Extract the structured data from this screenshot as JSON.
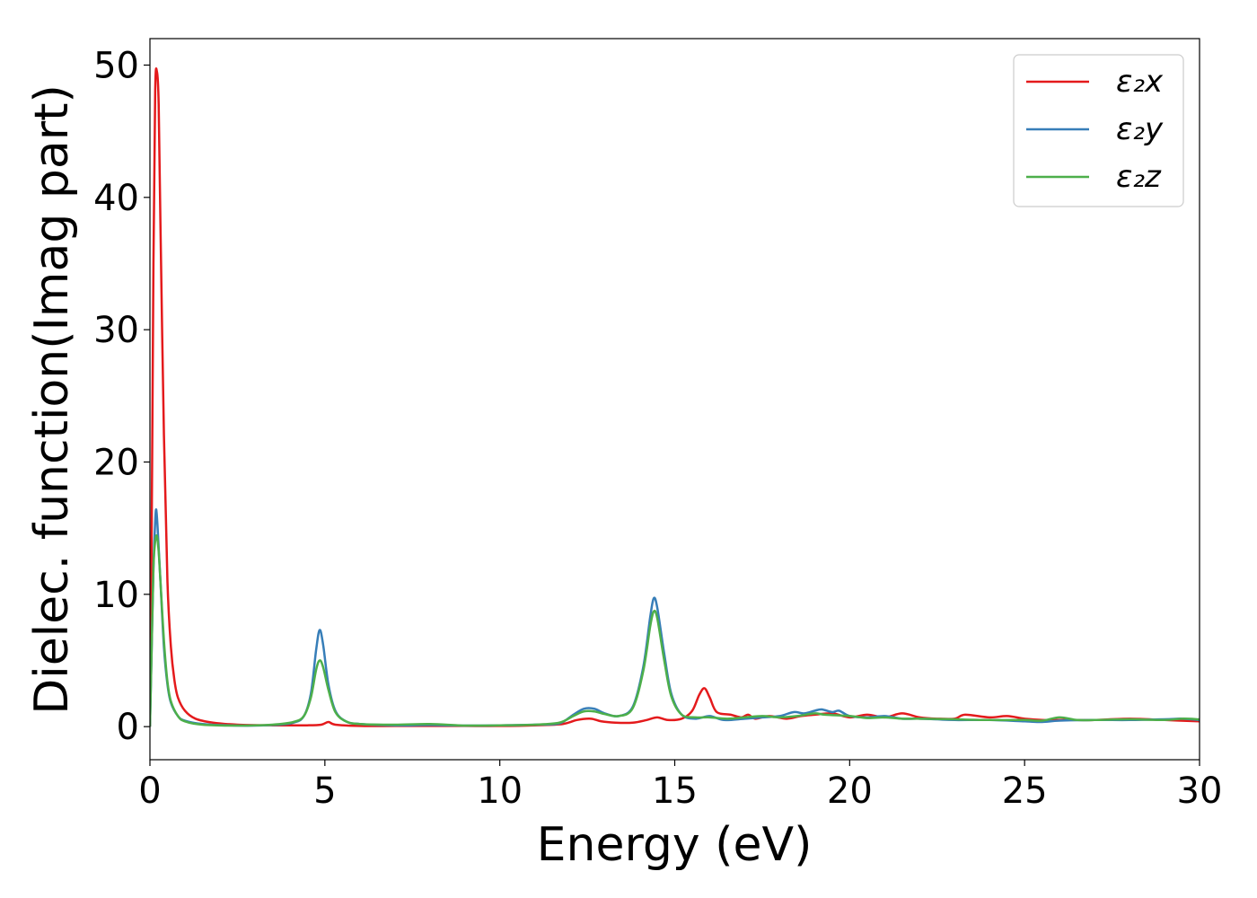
{
  "chart_data": {
    "type": "line",
    "title": "",
    "xlabel": "Energy (eV)",
    "ylabel": "Dielec. function(Imag part)",
    "xlim": [
      0,
      30
    ],
    "ylim": [
      -2.5,
      52
    ],
    "xticks": [
      0,
      5,
      10,
      15,
      20,
      25,
      30
    ],
    "yticks": [
      0,
      10,
      20,
      30,
      40,
      50
    ],
    "grid": false,
    "legend_position": "top-right",
    "series": [
      {
        "name": "ε₂x",
        "color": "#e41a1c",
        "points": [
          [
            0,
            0
          ],
          [
            0.05,
            15
          ],
          [
            0.1,
            35
          ],
          [
            0.15,
            48
          ],
          [
            0.2,
            49.5
          ],
          [
            0.25,
            47
          ],
          [
            0.3,
            38
          ],
          [
            0.4,
            22
          ],
          [
            0.5,
            11
          ],
          [
            0.6,
            6
          ],
          [
            0.7,
            3.5
          ],
          [
            0.8,
            2.2
          ],
          [
            1.0,
            1.2
          ],
          [
            1.3,
            0.6
          ],
          [
            1.8,
            0.3
          ],
          [
            2.5,
            0.15
          ],
          [
            3.5,
            0.1
          ],
          [
            4.5,
            0.1
          ],
          [
            4.9,
            0.15
          ],
          [
            5.1,
            0.35
          ],
          [
            5.3,
            0.15
          ],
          [
            6,
            0.05
          ],
          [
            7,
            0.05
          ],
          [
            8,
            0.05
          ],
          [
            9,
            0.05
          ],
          [
            10,
            0.05
          ],
          [
            11,
            0.1
          ],
          [
            11.8,
            0.2
          ],
          [
            12.2,
            0.5
          ],
          [
            12.6,
            0.6
          ],
          [
            12.9,
            0.4
          ],
          [
            13.3,
            0.3
          ],
          [
            13.8,
            0.3
          ],
          [
            14.2,
            0.5
          ],
          [
            14.5,
            0.7
          ],
          [
            14.8,
            0.5
          ],
          [
            15.2,
            0.6
          ],
          [
            15.5,
            1.2
          ],
          [
            15.7,
            2.4
          ],
          [
            15.85,
            2.9
          ],
          [
            16,
            2.2
          ],
          [
            16.2,
            1.1
          ],
          [
            16.6,
            0.9
          ],
          [
            16.9,
            0.7
          ],
          [
            17.1,
            0.9
          ],
          [
            17.3,
            0.6
          ],
          [
            17.7,
            0.8
          ],
          [
            18.2,
            0.6
          ],
          [
            18.6,
            0.8
          ],
          [
            19,
            0.9
          ],
          [
            19.5,
            1.0
          ],
          [
            20,
            0.7
          ],
          [
            20.5,
            0.9
          ],
          [
            21,
            0.7
          ],
          [
            21.5,
            1.0
          ],
          [
            22,
            0.7
          ],
          [
            22.5,
            0.6
          ],
          [
            23,
            0.6
          ],
          [
            23.3,
            0.9
          ],
          [
            24,
            0.7
          ],
          [
            24.5,
            0.8
          ],
          [
            25,
            0.6
          ],
          [
            25.5,
            0.5
          ],
          [
            26,
            0.5
          ],
          [
            26.5,
            0.5
          ],
          [
            27,
            0.5
          ],
          [
            28,
            0.6
          ],
          [
            29,
            0.5
          ],
          [
            30,
            0.4
          ]
        ]
      },
      {
        "name": "ε₂y",
        "color": "#377eb8",
        "points": [
          [
            0,
            0
          ],
          [
            0.05,
            6
          ],
          [
            0.1,
            12
          ],
          [
            0.15,
            15.5
          ],
          [
            0.18,
            16.4
          ],
          [
            0.22,
            15
          ],
          [
            0.3,
            11
          ],
          [
            0.4,
            6
          ],
          [
            0.5,
            3.2
          ],
          [
            0.6,
            1.8
          ],
          [
            0.8,
            0.8
          ],
          [
            1.0,
            0.45
          ],
          [
            1.5,
            0.2
          ],
          [
            2.5,
            0.08
          ],
          [
            3.5,
            0.12
          ],
          [
            4.1,
            0.3
          ],
          [
            4.4,
            0.8
          ],
          [
            4.6,
            2.5
          ],
          [
            4.75,
            5.8
          ],
          [
            4.85,
            7.3
          ],
          [
            4.95,
            6.2
          ],
          [
            5.1,
            3.2
          ],
          [
            5.3,
            1.2
          ],
          [
            5.6,
            0.4
          ],
          [
            6,
            0.2
          ],
          [
            7,
            0.1
          ],
          [
            8,
            0.12
          ],
          [
            9,
            0.08
          ],
          [
            10,
            0.1
          ],
          [
            11,
            0.15
          ],
          [
            11.7,
            0.25
          ],
          [
            12.1,
            0.9
          ],
          [
            12.4,
            1.35
          ],
          [
            12.7,
            1.35
          ],
          [
            13,
            1.0
          ],
          [
            13.4,
            0.8
          ],
          [
            13.8,
            1.5
          ],
          [
            14.1,
            4.5
          ],
          [
            14.3,
            8.3
          ],
          [
            14.4,
            9.7
          ],
          [
            14.5,
            9.0
          ],
          [
            14.7,
            5.5
          ],
          [
            14.9,
            2.5
          ],
          [
            15.2,
            0.9
          ],
          [
            15.6,
            0.6
          ],
          [
            16,
            0.8
          ],
          [
            16.4,
            0.5
          ],
          [
            17,
            0.6
          ],
          [
            17.5,
            0.7
          ],
          [
            18,
            0.8
          ],
          [
            18.4,
            1.1
          ],
          [
            18.7,
            1.0
          ],
          [
            19,
            1.2
          ],
          [
            19.2,
            1.3
          ],
          [
            19.5,
            1.1
          ],
          [
            19.7,
            1.2
          ],
          [
            20,
            0.8
          ],
          [
            20.5,
            0.7
          ],
          [
            21,
            0.8
          ],
          [
            21.5,
            0.6
          ],
          [
            22,
            0.6
          ],
          [
            22.5,
            0.55
          ],
          [
            23,
            0.5
          ],
          [
            24,
            0.5
          ],
          [
            25,
            0.4
          ],
          [
            25.5,
            0.35
          ],
          [
            26,
            0.45
          ],
          [
            27,
            0.5
          ],
          [
            28,
            0.5
          ],
          [
            29,
            0.55
          ],
          [
            29.5,
            0.6
          ],
          [
            30,
            0.5
          ]
        ]
      },
      {
        "name": "ε₂z",
        "color": "#4daf4a",
        "points": [
          [
            0,
            0
          ],
          [
            0.05,
            6
          ],
          [
            0.1,
            12
          ],
          [
            0.15,
            14
          ],
          [
            0.2,
            14.4
          ],
          [
            0.25,
            13.2
          ],
          [
            0.3,
            11
          ],
          [
            0.4,
            6.5
          ],
          [
            0.5,
            3.4
          ],
          [
            0.6,
            1.9
          ],
          [
            0.8,
            0.8
          ],
          [
            1.0,
            0.4
          ],
          [
            1.5,
            0.15
          ],
          [
            2.5,
            0.08
          ],
          [
            3.5,
            0.15
          ],
          [
            4.1,
            0.35
          ],
          [
            4.4,
            0.8
          ],
          [
            4.6,
            2.2
          ],
          [
            4.75,
            4.3
          ],
          [
            4.85,
            5.0
          ],
          [
            4.95,
            4.5
          ],
          [
            5.1,
            2.8
          ],
          [
            5.3,
            1.1
          ],
          [
            5.6,
            0.4
          ],
          [
            6,
            0.2
          ],
          [
            7,
            0.15
          ],
          [
            8,
            0.2
          ],
          [
            9,
            0.08
          ],
          [
            10,
            0.1
          ],
          [
            11,
            0.15
          ],
          [
            11.7,
            0.3
          ],
          [
            12.1,
            0.8
          ],
          [
            12.4,
            1.15
          ],
          [
            12.7,
            1.15
          ],
          [
            13,
            0.95
          ],
          [
            13.4,
            0.8
          ],
          [
            13.8,
            1.4
          ],
          [
            14.1,
            4.2
          ],
          [
            14.3,
            7.6
          ],
          [
            14.4,
            8.7
          ],
          [
            14.5,
            8.2
          ],
          [
            14.7,
            5.0
          ],
          [
            14.9,
            2.3
          ],
          [
            15.2,
            0.9
          ],
          [
            15.6,
            0.7
          ],
          [
            16,
            0.7
          ],
          [
            16.5,
            0.6
          ],
          [
            17,
            0.7
          ],
          [
            17.5,
            0.8
          ],
          [
            18,
            0.7
          ],
          [
            18.5,
            0.8
          ],
          [
            19,
            1.0
          ],
          [
            19.3,
            0.9
          ],
          [
            20,
            0.8
          ],
          [
            20.5,
            0.65
          ],
          [
            21,
            0.7
          ],
          [
            21.5,
            0.6
          ],
          [
            22,
            0.6
          ],
          [
            23,
            0.55
          ],
          [
            24,
            0.5
          ],
          [
            25,
            0.5
          ],
          [
            25.5,
            0.45
          ],
          [
            26,
            0.7
          ],
          [
            26.5,
            0.5
          ],
          [
            27,
            0.5
          ],
          [
            28,
            0.55
          ],
          [
            29,
            0.5
          ],
          [
            29.5,
            0.6
          ],
          [
            30,
            0.55
          ]
        ]
      }
    ]
  }
}
